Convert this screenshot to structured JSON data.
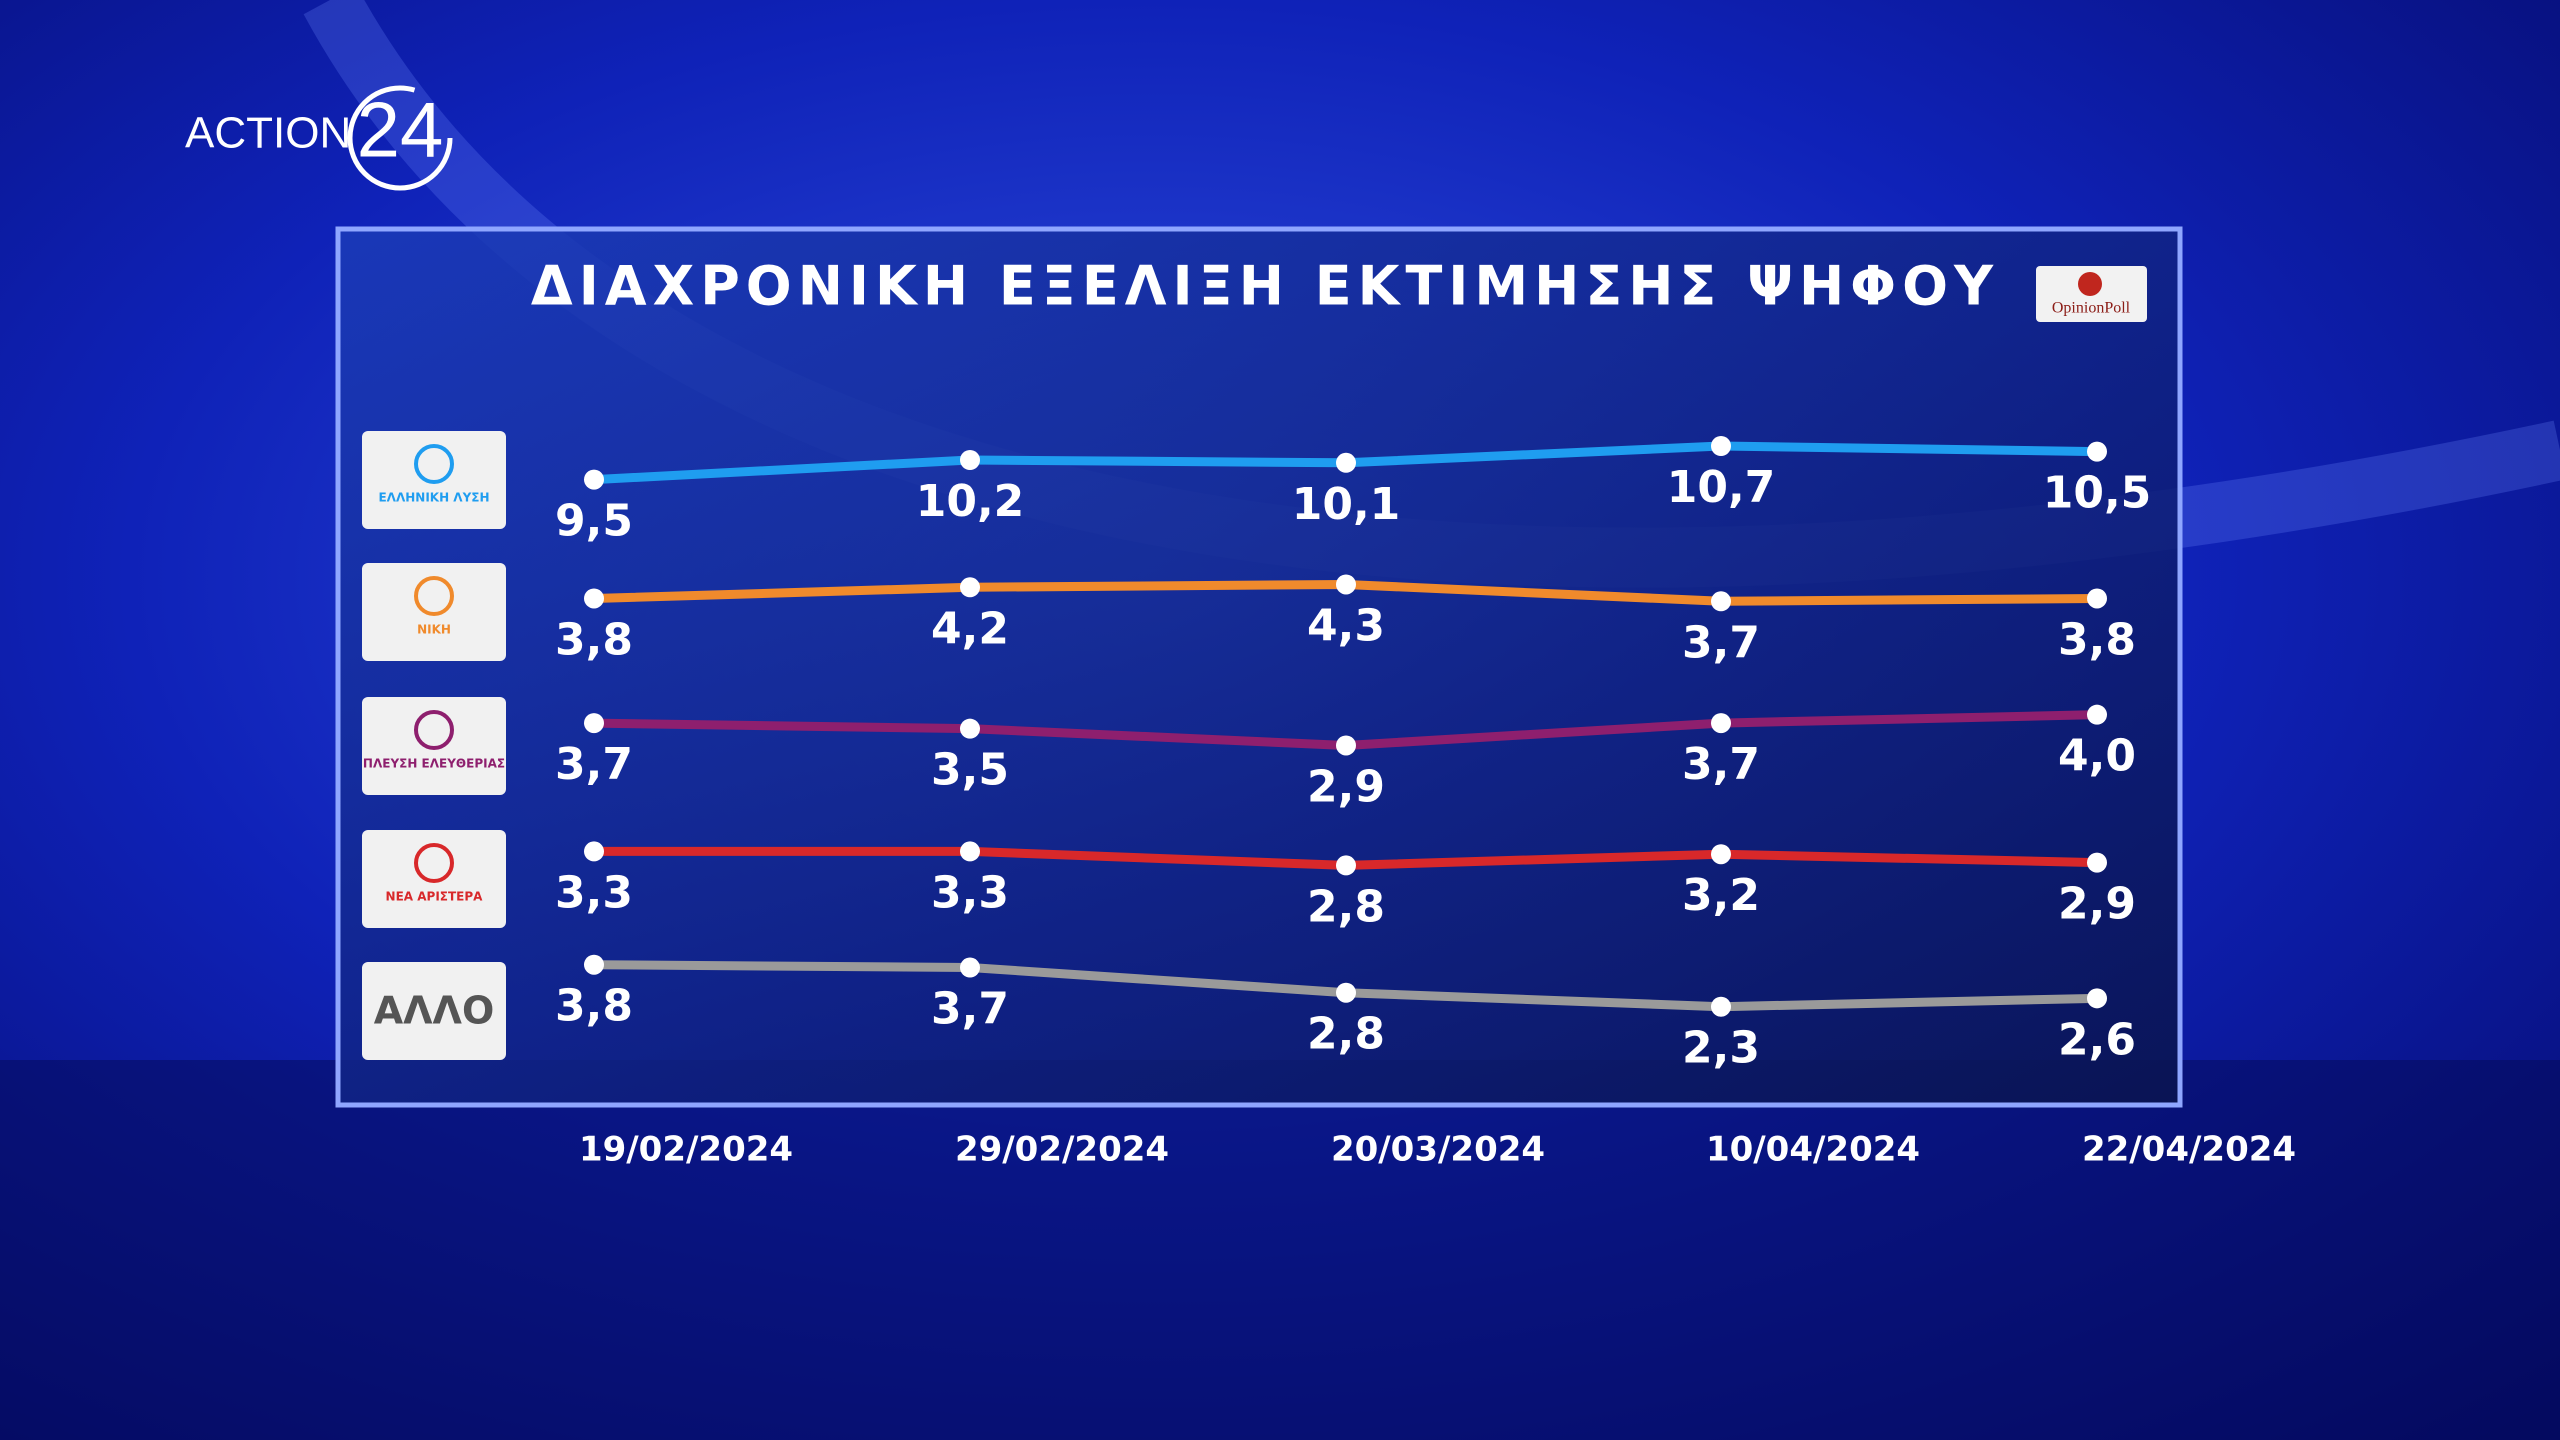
{
  "channel": {
    "name": "ACTION",
    "number": "24"
  },
  "chart_data": {
    "type": "line",
    "title": "ΔΙΑΧΡΟΝΙΚΗ ΕΞΕΛΙΞΗ ΕΚΤΙΜΗΣΗΣ ΨΗΦΟΥ",
    "source": "OpinionPoll",
    "categories": [
      "19/02/2024",
      "29/02/2024",
      "20/03/2024",
      "10/04/2024",
      "22/04/2024"
    ],
    "series": [
      {
        "name": "ΕΛΛΗΝΙΚΗ ΛΥΣΗ",
        "color": "#1f9df0",
        "values": [
          9.5,
          10.2,
          10.1,
          10.7,
          10.5
        ],
        "value_labels": [
          "9,5",
          "10,2",
          "10,1",
          "10,7",
          "10,5"
        ]
      },
      {
        "name": "ΝΙΚΗ",
        "color": "#f08a2c",
        "values": [
          3.8,
          4.2,
          4.3,
          3.7,
          3.8
        ],
        "value_labels": [
          "3,8",
          "4,2",
          "4,3",
          "3,7",
          "3,8"
        ]
      },
      {
        "name": "ΠΛΕΥΣΗ ΕΛΕΥΘΕΡΙΑΣ",
        "color": "#8e1f6e",
        "values": [
          3.7,
          3.5,
          2.9,
          3.7,
          4.0
        ],
        "value_labels": [
          "3,7",
          "3,5",
          "2,9",
          "3,7",
          "4,0"
        ]
      },
      {
        "name": "ΝΕΑ ΑΡΙΣΤΕΡΑ",
        "color": "#d8282a",
        "values": [
          3.3,
          3.3,
          2.8,
          3.2,
          2.9
        ],
        "value_labels": [
          "3,3",
          "3,3",
          "2,8",
          "3,2",
          "2,9"
        ]
      },
      {
        "name": "ΑΛΛΟ",
        "color": "#9a9a9a",
        "values": [
          3.8,
          3.7,
          2.8,
          2.3,
          2.6
        ],
        "value_labels": [
          "3,8",
          "3,7",
          "2,8",
          "2,3",
          "2,6"
        ]
      }
    ]
  }
}
